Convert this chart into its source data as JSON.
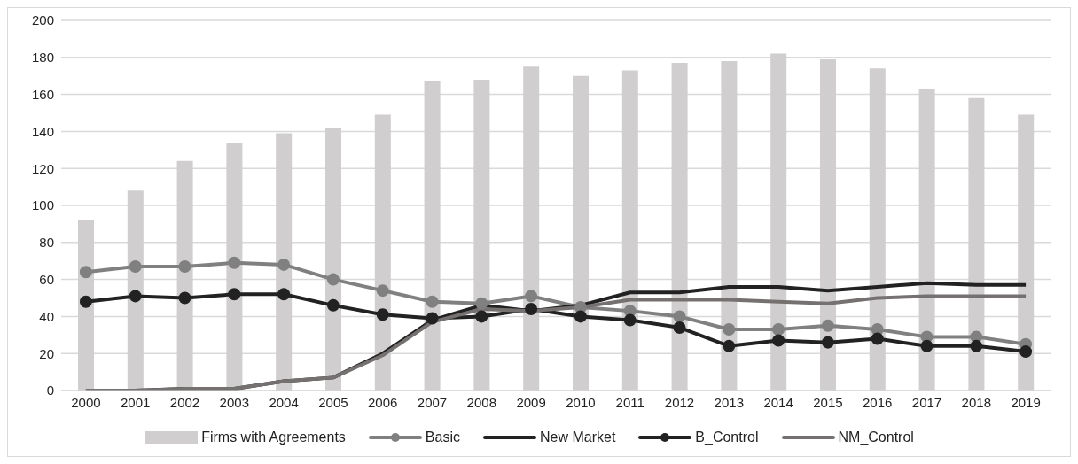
{
  "chart_data": {
    "type": "bar",
    "categories": [
      "2000",
      "2001",
      "2002",
      "2003",
      "2004",
      "2005",
      "2006",
      "2007",
      "2008",
      "2009",
      "2010",
      "2011",
      "2012",
      "2013",
      "2014",
      "2015",
      "2016",
      "2017",
      "2018",
      "2019"
    ],
    "series": [
      {
        "name": "Firms with Agreements",
        "color": "#d0cecf",
        "values": [
          92,
          108,
          124,
          134,
          139,
          142,
          149,
          167,
          168,
          175,
          170,
          173,
          177,
          178,
          182,
          179,
          174,
          163,
          158,
          149
        ]
      },
      {
        "name": "Basic",
        "type": "line",
        "color": "#808080",
        "marker": "circle",
        "values": [
          64,
          67,
          67,
          69,
          68,
          60,
          54,
          48,
          47,
          51,
          45,
          43,
          40,
          33,
          33,
          35,
          33,
          29,
          29,
          25
        ]
      },
      {
        "name": "New Market",
        "type": "line",
        "color": "#222222",
        "marker": "none",
        "values": [
          0,
          0,
          1,
          1,
          5,
          7,
          20,
          38,
          46,
          43,
          46,
          53,
          53,
          56,
          56,
          54,
          56,
          58,
          57,
          57
        ]
      },
      {
        "name": "B_Control",
        "type": "line",
        "color": "#222222",
        "marker": "circle",
        "values": [
          48,
          51,
          50,
          52,
          52,
          46,
          41,
          39,
          40,
          44,
          40,
          38,
          34,
          24,
          27,
          26,
          28,
          24,
          24,
          21
        ]
      },
      {
        "name": "NM_Control",
        "type": "line",
        "color": "#767171",
        "marker": "none",
        "values": [
          0,
          0,
          1,
          1,
          5,
          7,
          19,
          37,
          44,
          43,
          45,
          49,
          49,
          49,
          48,
          47,
          50,
          51,
          51,
          51
        ]
      }
    ],
    "ylim": [
      0,
      200
    ],
    "yticks": [
      0,
      20,
      40,
      60,
      80,
      100,
      120,
      140,
      160,
      180,
      200
    ],
    "grid": "y",
    "legend": "bottom"
  }
}
